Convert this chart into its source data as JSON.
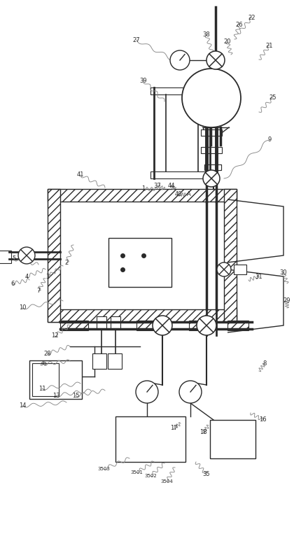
{
  "fig_width": 4.4,
  "fig_height": 7.93,
  "lc": "#2a2a2a",
  "rc": "#888888",
  "bg": "#ffffff",
  "xlim": [
    0,
    440
  ],
  "ylim": [
    0,
    793
  ]
}
